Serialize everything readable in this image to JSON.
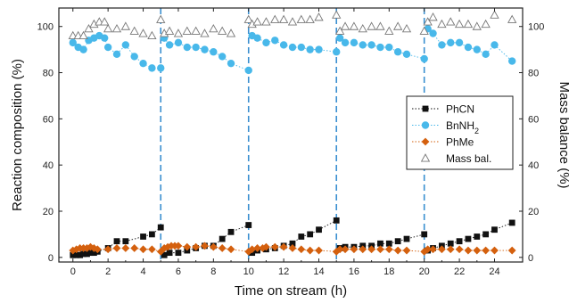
{
  "chart_data": {
    "type": "scatter",
    "xlabel": "Time on stream (h)",
    "ylabel": "Reaction composition (%)",
    "y2label": "Mass balance (%)",
    "xlim": [
      -0.8,
      25.6
    ],
    "ylim": [
      -2,
      108
    ],
    "y2lim": [
      -2,
      108
    ],
    "xticks": [
      0,
      2,
      4,
      6,
      8,
      10,
      12,
      14,
      16,
      18,
      20,
      22,
      24
    ],
    "yticks": [
      0,
      20,
      40,
      60,
      80,
      100
    ],
    "y2ticks": [
      0,
      20,
      40,
      60,
      80,
      100
    ],
    "vlines": [
      5,
      10,
      15,
      20
    ],
    "vline_color": "#3a8fd0",
    "legend_position": "center-right",
    "series": [
      {
        "name": "PhCN",
        "marker": "square",
        "color": "#111111",
        "axis": "left",
        "points": [
          [
            0,
            1
          ],
          [
            0.2,
            1
          ],
          [
            0.4,
            1
          ],
          [
            0.6,
            1.5
          ],
          [
            0.8,
            1.5
          ],
          [
            1,
            2
          ],
          [
            1.2,
            2
          ],
          [
            1.4,
            2.5
          ],
          [
            2,
            4
          ],
          [
            2.5,
            7
          ],
          [
            3,
            7
          ],
          [
            4,
            9
          ],
          [
            4.5,
            10
          ],
          [
            5,
            13
          ],
          [
            5.2,
            1
          ],
          [
            5.5,
            2
          ],
          [
            6,
            2
          ],
          [
            6.5,
            3
          ],
          [
            7,
            4
          ],
          [
            7.5,
            5
          ],
          [
            8,
            5
          ],
          [
            8.5,
            8
          ],
          [
            9,
            11
          ],
          [
            10,
            14
          ],
          [
            10.2,
            2
          ],
          [
            10.5,
            3
          ],
          [
            11,
            3.5
          ],
          [
            11.5,
            4
          ],
          [
            12,
            5
          ],
          [
            12.5,
            6
          ],
          [
            13,
            9
          ],
          [
            13.5,
            10
          ],
          [
            14,
            12
          ],
          [
            15,
            16
          ],
          [
            15.2,
            4
          ],
          [
            15.5,
            4.5
          ],
          [
            16,
            4.5
          ],
          [
            16.5,
            5
          ],
          [
            17,
            5
          ],
          [
            17.5,
            6
          ],
          [
            18,
            6
          ],
          [
            18.5,
            7
          ],
          [
            19,
            8
          ],
          [
            20,
            10
          ],
          [
            20.2,
            3
          ],
          [
            20.5,
            4
          ],
          [
            21,
            5
          ],
          [
            21.5,
            6
          ],
          [
            22,
            7
          ],
          [
            22.5,
            8
          ],
          [
            23,
            9
          ],
          [
            23.5,
            10
          ],
          [
            24,
            12
          ],
          [
            25,
            15
          ]
        ]
      },
      {
        "name": "BnNH2",
        "legend_label": "BnNH",
        "legend_sub": "2",
        "marker": "circle",
        "color": "#48b8ea",
        "axis": "left",
        "points": [
          [
            0,
            93
          ],
          [
            0.3,
            91
          ],
          [
            0.6,
            90
          ],
          [
            0.9,
            94
          ],
          [
            1.2,
            95
          ],
          [
            1.5,
            96
          ],
          [
            1.8,
            95
          ],
          [
            2,
            91
          ],
          [
            2.5,
            88
          ],
          [
            3,
            92
          ],
          [
            3.5,
            87
          ],
          [
            4,
            84
          ],
          [
            4.5,
            82
          ],
          [
            5,
            82
          ],
          [
            5.2,
            95
          ],
          [
            5.5,
            92
          ],
          [
            6,
            93
          ],
          [
            6.5,
            91
          ],
          [
            7,
            91
          ],
          [
            7.5,
            90
          ],
          [
            8,
            89
          ],
          [
            8.5,
            87
          ],
          [
            9,
            84
          ],
          [
            10,
            81
          ],
          [
            10.2,
            96
          ],
          [
            10.5,
            95
          ],
          [
            11,
            93
          ],
          [
            11.5,
            94
          ],
          [
            12,
            92
          ],
          [
            12.5,
            91
          ],
          [
            13,
            91
          ],
          [
            13.5,
            90
          ],
          [
            14,
            90
          ],
          [
            15,
            89
          ],
          [
            15.2,
            95
          ],
          [
            15.5,
            93
          ],
          [
            16,
            93
          ],
          [
            16.5,
            92
          ],
          [
            17,
            92
          ],
          [
            17.5,
            91
          ],
          [
            18,
            91
          ],
          [
            18.5,
            89
          ],
          [
            19,
            88
          ],
          [
            20,
            86
          ],
          [
            20.2,
            99
          ],
          [
            20.5,
            97
          ],
          [
            21,
            92
          ],
          [
            21.5,
            93
          ],
          [
            22,
            93
          ],
          [
            22.5,
            91
          ],
          [
            23,
            90
          ],
          [
            23.5,
            88
          ],
          [
            24,
            92
          ],
          [
            25,
            85
          ]
        ]
      },
      {
        "name": "PhMe",
        "marker": "diamond",
        "color": "#d4600e",
        "axis": "left",
        "points": [
          [
            0,
            3
          ],
          [
            0.2,
            3.5
          ],
          [
            0.4,
            4
          ],
          [
            0.6,
            4
          ],
          [
            0.8,
            4
          ],
          [
            1,
            4.5
          ],
          [
            1.2,
            4
          ],
          [
            1.4,
            3.5
          ],
          [
            2,
            3.5
          ],
          [
            2.5,
            4
          ],
          [
            3,
            4
          ],
          [
            3.5,
            4
          ],
          [
            4,
            3.5
          ],
          [
            4.5,
            3.5
          ],
          [
            5,
            2.5
          ],
          [
            5.2,
            4
          ],
          [
            5.4,
            4.5
          ],
          [
            5.6,
            5
          ],
          [
            5.8,
            5
          ],
          [
            6,
            5
          ],
          [
            6.5,
            4.5
          ],
          [
            7,
            4.5
          ],
          [
            7.5,
            5
          ],
          [
            8,
            4.5
          ],
          [
            8.5,
            4
          ],
          [
            9,
            3.5
          ],
          [
            10,
            2.5
          ],
          [
            10.2,
            3.5
          ],
          [
            10.5,
            4
          ],
          [
            10.8,
            4
          ],
          [
            11,
            4.5
          ],
          [
            11.5,
            4.5
          ],
          [
            12,
            4.5
          ],
          [
            12.5,
            4
          ],
          [
            13,
            3.5
          ],
          [
            13.5,
            3
          ],
          [
            14,
            3
          ],
          [
            15,
            2.5
          ],
          [
            15.2,
            3.5
          ],
          [
            15.5,
            3.5
          ],
          [
            16,
            3.5
          ],
          [
            16.5,
            3.5
          ],
          [
            17,
            3.5
          ],
          [
            17.5,
            3.5
          ],
          [
            18,
            3.5
          ],
          [
            18.5,
            3
          ],
          [
            19,
            3
          ],
          [
            20,
            2.5
          ],
          [
            20.2,
            3.5
          ],
          [
            20.5,
            3.5
          ],
          [
            21,
            3.5
          ],
          [
            21.5,
            3.5
          ],
          [
            22,
            3.5
          ],
          [
            22.5,
            3
          ],
          [
            23,
            3
          ],
          [
            23.5,
            3
          ],
          [
            24,
            3
          ],
          [
            25,
            3
          ]
        ]
      },
      {
        "name": "Mass bal.",
        "marker": "triangle-open",
        "color": "#777777",
        "axis": "right",
        "points": [
          [
            0,
            96
          ],
          [
            0.3,
            96
          ],
          [
            0.6,
            96
          ],
          [
            0.9,
            99
          ],
          [
            1.2,
            101
          ],
          [
            1.5,
            102
          ],
          [
            1.8,
            102
          ],
          [
            2,
            99
          ],
          [
            2.5,
            99
          ],
          [
            3,
            100
          ],
          [
            3.5,
            98
          ],
          [
            4,
            97
          ],
          [
            4.5,
            96
          ],
          [
            5,
            103
          ],
          [
            5.2,
            97
          ],
          [
            5.5,
            98
          ],
          [
            6,
            97
          ],
          [
            6.5,
            98
          ],
          [
            7,
            98
          ],
          [
            7.5,
            97
          ],
          [
            8,
            99
          ],
          [
            8.5,
            98
          ],
          [
            9,
            97
          ],
          [
            10,
            103
          ],
          [
            10.2,
            101
          ],
          [
            10.5,
            102
          ],
          [
            11,
            102
          ],
          [
            11.5,
            103
          ],
          [
            12,
            103
          ],
          [
            12.5,
            102
          ],
          [
            13,
            103
          ],
          [
            13.5,
            103
          ],
          [
            14,
            104
          ],
          [
            15,
            105
          ],
          [
            15.2,
            98
          ],
          [
            15.5,
            100
          ],
          [
            16,
            100
          ],
          [
            16.5,
            99
          ],
          [
            17,
            100
          ],
          [
            17.5,
            100
          ],
          [
            18,
            98
          ],
          [
            18.5,
            100
          ],
          [
            19,
            99
          ],
          [
            20,
            98
          ],
          [
            20.2,
            102
          ],
          [
            20.5,
            104
          ],
          [
            21,
            101
          ],
          [
            21.5,
            102
          ],
          [
            22,
            101
          ],
          [
            22.5,
            101
          ],
          [
            23,
            100
          ],
          [
            23.5,
            101
          ],
          [
            24,
            105
          ],
          [
            25,
            103
          ]
        ]
      }
    ]
  }
}
